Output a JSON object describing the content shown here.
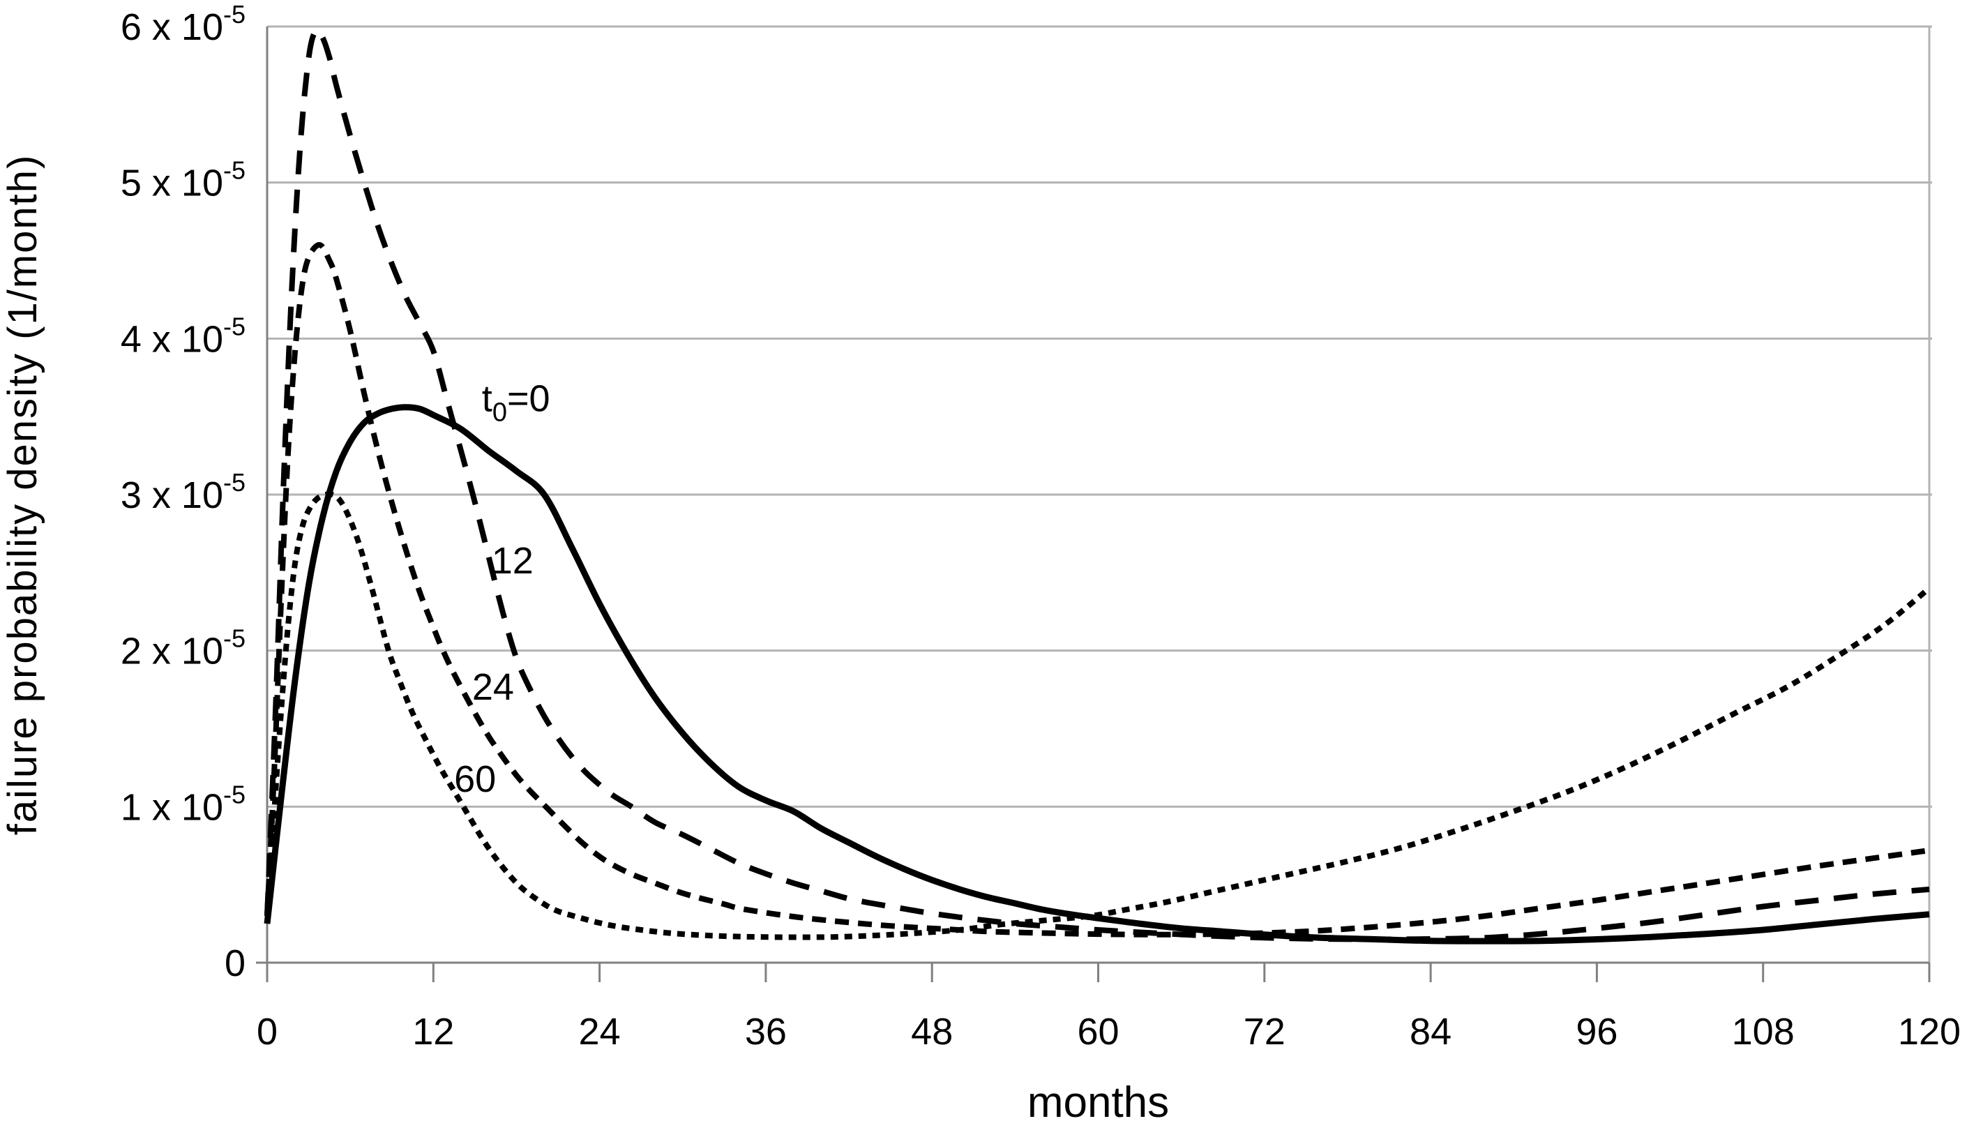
{
  "figure": {
    "background": "#ffffff",
    "text_color": "#000000",
    "axis_color": "#808080",
    "gridline_color": "#b3b3b3",
    "curve_color": "#000000"
  },
  "chart_data": {
    "type": "line",
    "title": "",
    "xlabel": "months",
    "ylabel": "failure probability density  (1/month)",
    "xlim": [
      0,
      120
    ],
    "ylim": [
      0,
      6e-05
    ],
    "y_unit_multiplier": 1e-05,
    "grid": "horizontal",
    "legend_position": "inline-annotations",
    "x_ticks": [
      0,
      12,
      24,
      36,
      48,
      60,
      72,
      84,
      96,
      108,
      120
    ],
    "y_tick_labels": [
      {
        "v": 6,
        "base": "6 x 10",
        "sup": "-5"
      },
      {
        "v": 5,
        "base": "5 x 10",
        "sup": "-5"
      },
      {
        "v": 4,
        "base": "4 x 10",
        "sup": "-5"
      },
      {
        "v": 3,
        "base": "3 x 10",
        "sup": "-5"
      },
      {
        "v": 2,
        "base": "2 x 10",
        "sup": "-5"
      },
      {
        "v": 1,
        "base": "1 x 10",
        "sup": "-5"
      },
      {
        "v": 0,
        "base": "0",
        "sup": ""
      }
    ],
    "series": [
      {
        "name": "t0=0",
        "label": "t0=0",
        "dash": "solid",
        "points": [
          [
            0,
            0.25
          ],
          [
            1,
            1.05
          ],
          [
            2,
            1.8
          ],
          [
            3,
            2.42
          ],
          [
            4,
            2.85
          ],
          [
            5,
            3.15
          ],
          [
            6,
            3.34
          ],
          [
            7,
            3.46
          ],
          [
            8,
            3.52
          ],
          [
            9,
            3.55
          ],
          [
            10,
            3.56
          ],
          [
            11,
            3.55
          ],
          [
            12,
            3.51
          ],
          [
            14,
            3.42
          ],
          [
            16,
            3.28
          ],
          [
            18,
            3.15
          ],
          [
            20,
            3.0
          ],
          [
            22,
            2.66
          ],
          [
            24,
            2.3
          ],
          [
            26,
            1.98
          ],
          [
            28,
            1.7
          ],
          [
            30,
            1.47
          ],
          [
            32,
            1.28
          ],
          [
            34,
            1.13
          ],
          [
            36,
            1.04
          ],
          [
            38,
            0.97
          ],
          [
            40,
            0.86
          ],
          [
            42,
            0.77
          ],
          [
            44,
            0.68
          ],
          [
            46,
            0.6
          ],
          [
            48,
            0.53
          ],
          [
            50,
            0.47
          ],
          [
            52,
            0.42
          ],
          [
            54,
            0.38
          ],
          [
            56,
            0.34
          ],
          [
            58,
            0.31
          ],
          [
            60,
            0.285
          ],
          [
            63,
            0.25
          ],
          [
            66,
            0.22
          ],
          [
            69,
            0.2
          ],
          [
            72,
            0.18
          ],
          [
            76,
            0.16
          ],
          [
            80,
            0.15
          ],
          [
            84,
            0.14
          ],
          [
            88,
            0.138
          ],
          [
            92,
            0.14
          ],
          [
            96,
            0.15
          ],
          [
            100,
            0.165
          ],
          [
            104,
            0.185
          ],
          [
            108,
            0.21
          ],
          [
            112,
            0.245
          ],
          [
            116,
            0.28
          ],
          [
            120,
            0.31
          ]
        ]
      },
      {
        "name": "t0=12",
        "label": "12",
        "dash": "long",
        "points": [
          [
            0,
            0.3
          ],
          [
            0.6,
            1.6
          ],
          [
            1.2,
            3.1
          ],
          [
            1.8,
            4.35
          ],
          [
            2.4,
            5.25
          ],
          [
            3,
            5.8
          ],
          [
            3.5,
            5.97
          ],
          [
            4,
            5.93
          ],
          [
            4.5,
            5.8
          ],
          [
            5,
            5.62
          ],
          [
            6,
            5.3
          ],
          [
            7,
            5.0
          ],
          [
            8,
            4.72
          ],
          [
            9,
            4.48
          ],
          [
            10,
            4.27
          ],
          [
            11,
            4.1
          ],
          [
            12,
            3.92
          ],
          [
            13,
            3.6
          ],
          [
            14,
            3.28
          ],
          [
            15,
            2.95
          ],
          [
            16,
            2.6
          ],
          [
            17,
            2.25
          ],
          [
            18,
            1.95
          ],
          [
            19,
            1.75
          ],
          [
            20,
            1.58
          ],
          [
            21,
            1.44
          ],
          [
            22,
            1.32
          ],
          [
            23,
            1.22
          ],
          [
            24,
            1.14
          ],
          [
            25,
            1.07
          ],
          [
            26.3,
            1.0
          ],
          [
            28,
            0.9
          ],
          [
            30,
            0.82
          ],
          [
            32,
            0.73
          ],
          [
            34,
            0.64
          ],
          [
            36,
            0.57
          ],
          [
            38,
            0.51
          ],
          [
            40,
            0.46
          ],
          [
            42,
            0.41
          ],
          [
            44,
            0.375
          ],
          [
            46,
            0.345
          ],
          [
            48,
            0.315
          ],
          [
            51,
            0.28
          ],
          [
            54,
            0.25
          ],
          [
            57,
            0.23
          ],
          [
            60,
            0.21
          ],
          [
            64,
            0.19
          ],
          [
            68,
            0.172
          ],
          [
            72,
            0.16
          ],
          [
            76,
            0.152
          ],
          [
            80,
            0.15
          ],
          [
            84,
            0.152
          ],
          [
            88,
            0.16
          ],
          [
            92,
            0.185
          ],
          [
            96,
            0.22
          ],
          [
            100,
            0.26
          ],
          [
            104,
            0.31
          ],
          [
            108,
            0.36
          ],
          [
            112,
            0.4
          ],
          [
            116,
            0.44
          ],
          [
            120,
            0.47
          ]
        ]
      },
      {
        "name": "t0=24",
        "label": "24",
        "dash": "medium",
        "points": [
          [
            0,
            0.3
          ],
          [
            0.5,
            1.2
          ],
          [
            1,
            2.3
          ],
          [
            1.5,
            3.25
          ],
          [
            2,
            3.9
          ],
          [
            2.5,
            4.32
          ],
          [
            3,
            4.52
          ],
          [
            3.8,
            4.6
          ],
          [
            4.5,
            4.5
          ],
          [
            5,
            4.38
          ],
          [
            6,
            4.05
          ],
          [
            7,
            3.65
          ],
          [
            8,
            3.28
          ],
          [
            9,
            2.95
          ],
          [
            10,
            2.65
          ],
          [
            11,
            2.38
          ],
          [
            12,
            2.15
          ],
          [
            12.6,
            2.02
          ],
          [
            13.5,
            1.85
          ],
          [
            15,
            1.6
          ],
          [
            16,
            1.45
          ],
          [
            17,
            1.32
          ],
          [
            18,
            1.2
          ],
          [
            19,
            1.1
          ],
          [
            20,
            1.01
          ],
          [
            21,
            0.92
          ],
          [
            22.6,
            0.78
          ],
          [
            24,
            0.68
          ],
          [
            25.1,
            0.62
          ],
          [
            26.5,
            0.56
          ],
          [
            28,
            0.51
          ],
          [
            29.5,
            0.46
          ],
          [
            31,
            0.42
          ],
          [
            33,
            0.375
          ],
          [
            34,
            0.35
          ],
          [
            36,
            0.32
          ],
          [
            38,
            0.295
          ],
          [
            40,
            0.275
          ],
          [
            43,
            0.25
          ],
          [
            46,
            0.23
          ],
          [
            49,
            0.215
          ],
          [
            52,
            0.2
          ],
          [
            56,
            0.19
          ],
          [
            60,
            0.183
          ],
          [
            64,
            0.18
          ],
          [
            68,
            0.182
          ],
          [
            72,
            0.19
          ],
          [
            76,
            0.205
          ],
          [
            80,
            0.23
          ],
          [
            84,
            0.26
          ],
          [
            88,
            0.3
          ],
          [
            92,
            0.35
          ],
          [
            96,
            0.4
          ],
          [
            100,
            0.455
          ],
          [
            104,
            0.51
          ],
          [
            108,
            0.565
          ],
          [
            112,
            0.62
          ],
          [
            116,
            0.67
          ],
          [
            120,
            0.72
          ]
        ]
      },
      {
        "name": "t0=60",
        "label": "60",
        "dash": "short",
        "points": [
          [
            0,
            0.3
          ],
          [
            0.5,
            0.95
          ],
          [
            1,
            1.6
          ],
          [
            1.5,
            2.15
          ],
          [
            2,
            2.55
          ],
          [
            2.5,
            2.78
          ],
          [
            3,
            2.9
          ],
          [
            3.7,
            2.98
          ],
          [
            4.7,
            3.0
          ],
          [
            5.5,
            2.93
          ],
          [
            6.5,
            2.72
          ],
          [
            7.5,
            2.42
          ],
          [
            8.7,
            2.02
          ],
          [
            9.5,
            1.82
          ],
          [
            10.5,
            1.6
          ],
          [
            11.5,
            1.42
          ],
          [
            12.5,
            1.25
          ],
          [
            13.5,
            1.1
          ],
          [
            14.5,
            0.95
          ],
          [
            15.5,
            0.8
          ],
          [
            16.5,
            0.67
          ],
          [
            17.5,
            0.56
          ],
          [
            18.5,
            0.47
          ],
          [
            20,
            0.375
          ],
          [
            21,
            0.33
          ],
          [
            22.3,
            0.295
          ],
          [
            24,
            0.255
          ],
          [
            25.4,
            0.23
          ],
          [
            27,
            0.21
          ],
          [
            29,
            0.19
          ],
          [
            31,
            0.178
          ],
          [
            33,
            0.17
          ],
          [
            35.4,
            0.165
          ],
          [
            38,
            0.163
          ],
          [
            41,
            0.165
          ],
          [
            44,
            0.175
          ],
          [
            47,
            0.19
          ],
          [
            50,
            0.21
          ],
          [
            53,
            0.245
          ],
          [
            56,
            0.27
          ],
          [
            59.5,
            0.3
          ],
          [
            62,
            0.34
          ],
          [
            65,
            0.39
          ],
          [
            68,
            0.45
          ],
          [
            71,
            0.51
          ],
          [
            74,
            0.57
          ],
          [
            78,
            0.65
          ],
          [
            82,
            0.74
          ],
          [
            86,
            0.85
          ],
          [
            90,
            0.97
          ],
          [
            94,
            1.1
          ],
          [
            98,
            1.25
          ],
          [
            102,
            1.42
          ],
          [
            106,
            1.6
          ],
          [
            110,
            1.78
          ],
          [
            114,
            2.0
          ],
          [
            117,
            2.18
          ],
          [
            120,
            2.4
          ]
        ]
      }
    ],
    "annotations": [
      {
        "name": "curve-label-t0-0",
        "x": 15.5,
        "y": 3.62,
        "parts": [
          [
            "t",
            "n"
          ],
          [
            "0",
            "sub"
          ],
          [
            "=0",
            "n"
          ]
        ]
      },
      {
        "name": "curve-label-12",
        "x": 16.2,
        "y": 2.58,
        "parts": [
          [
            "12",
            "n"
          ]
        ]
      },
      {
        "name": "curve-label-24",
        "x": 14.8,
        "y": 1.77,
        "parts": [
          [
            "24",
            "n"
          ]
        ]
      },
      {
        "name": "curve-label-60",
        "x": 13.5,
        "y": 1.18,
        "parts": [
          [
            "60",
            "n"
          ]
        ]
      }
    ]
  }
}
